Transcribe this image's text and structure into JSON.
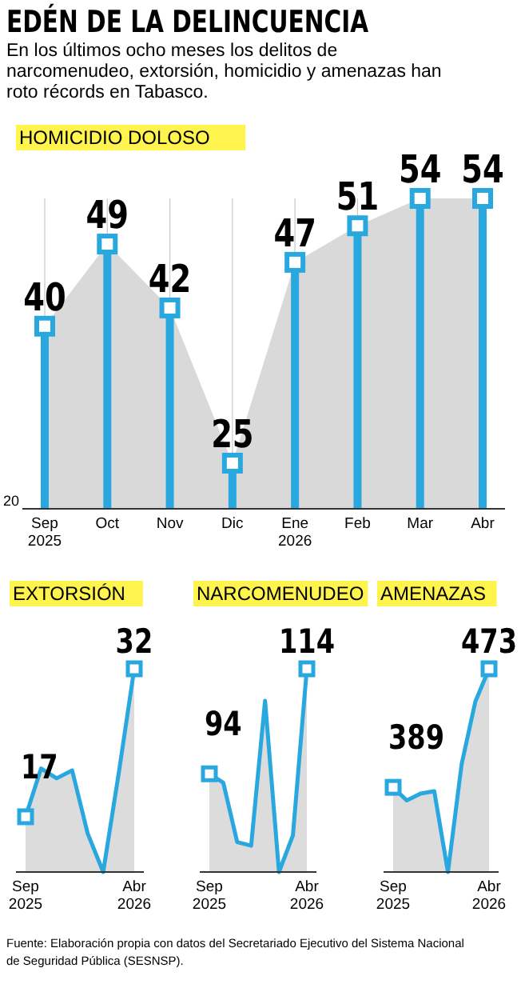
{
  "chart_data": [
    {
      "type": "lollipop",
      "title": "EDÉN DE LA DELINCUENCIA",
      "subtitle": "En los últimos ocho meses los delitos de narcomenudeo, extorsión, homicidio y amenazas han roto récords en Tabasco.",
      "ylabel": "HOMICIDIO DOLOSO",
      "categories": [
        "Sep 2025",
        "Oct",
        "Nov",
        "Dic",
        "Ene 2026",
        "Feb",
        "Mar",
        "Abr"
      ],
      "series": [
        {
          "type": "area",
          "color": "#d9d9d9",
          "values": [
            40,
            49,
            42,
            25,
            47,
            51,
            54,
            54
          ]
        },
        {
          "type": "lollipop",
          "color": "#29a8e0",
          "marker": "square",
          "values": [
            40,
            49,
            42,
            25,
            47,
            51,
            54,
            54
          ],
          "value_labels": [
            "40",
            "49",
            "42",
            "25",
            "47",
            "51",
            "54",
            "54"
          ]
        }
      ],
      "ylim": [
        20,
        54
      ],
      "grid": "x",
      "annotations": [
        "20"
      ]
    },
    {
      "type": "area",
      "ylabel": "EXTORSIÓN",
      "categories": [
        "Sep 2025",
        null,
        null,
        null,
        null,
        null,
        null,
        "Abr 2026"
      ],
      "series": [
        {
          "color": "#29a8e0",
          "values": [
            17,
            21.9,
            20.9,
            21.7,
            15.3,
            11.4,
            21.4,
            32
          ],
          "value_labels": [
            "17",
            null,
            null,
            null,
            null,
            null,
            null,
            "32"
          ]
        }
      ],
      "tick_labels": "x"
    },
    {
      "type": "area",
      "ylabel": "NARCOMENUDEO",
      "categories": [
        "Sep 2025",
        null,
        null,
        null,
        null,
        null,
        null,
        "Abr 2026"
      ],
      "series": [
        {
          "color": "#29a8e0",
          "values": [
            94,
            92.3,
            81,
            80.3,
            107.9,
            75.3,
            82.3,
            114
          ],
          "value_labels": [
            "94",
            null,
            null,
            null,
            null,
            null,
            null,
            "114"
          ]
        }
      ],
      "tick_labels": "x"
    },
    {
      "type": "area",
      "ylabel": "AMENAZAS",
      "categories": [
        "Sep 2025",
        null,
        null,
        null,
        null,
        null,
        null,
        "Abr 2026"
      ],
      "series": [
        {
          "color": "#29a8e0",
          "values": [
            389,
            379.7,
            384.6,
            386.3,
            329,
            405.4,
            449.8,
            473
          ],
          "value_labels": [
            "389",
            null,
            null,
            null,
            null,
            null,
            null,
            "473"
          ]
        }
      ],
      "tick_labels": "x",
      "annotations": [
        "Fuente: Elaboración propia con datos del Secretariado Ejecutivo del Sistema Nacional de Seguridad Pública (SESNSP)."
      ]
    }
  ]
}
